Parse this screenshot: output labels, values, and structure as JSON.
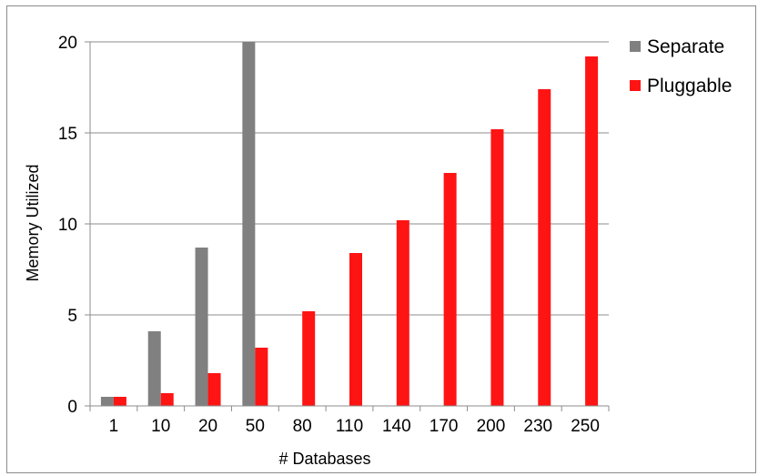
{
  "chart_data": {
    "type": "bar",
    "title": "",
    "xlabel": "# Databases",
    "ylabel": "Memory Utilized",
    "categories": [
      "1",
      "10",
      "20",
      "50",
      "80",
      "110",
      "140",
      "170",
      "200",
      "230",
      "250"
    ],
    "ylim": [
      0,
      20
    ],
    "yticks": [
      "0",
      "5",
      "10",
      "15",
      "20"
    ],
    "grid": true,
    "legend_position": "right",
    "series": [
      {
        "name": "Separate",
        "color": "#808080",
        "values": [
          0.5,
          4.1,
          8.7,
          20,
          null,
          null,
          null,
          null,
          null,
          null,
          null
        ]
      },
      {
        "name": "Pluggable",
        "color": "#ff1414",
        "values": [
          0.5,
          0.7,
          1.8,
          3.2,
          5.2,
          8.4,
          10.2,
          12.8,
          15.2,
          17.4,
          19.2
        ]
      }
    ]
  }
}
